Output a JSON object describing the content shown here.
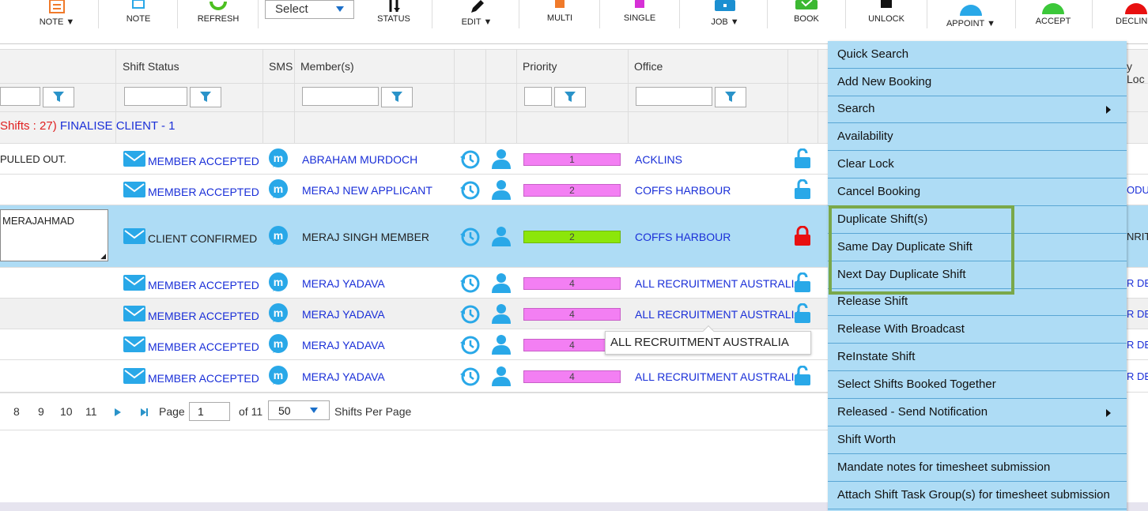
{
  "toolbar": {
    "note_menu": "NOTE",
    "note": "NOTE",
    "refresh": "REFRESH",
    "select_value": "Select",
    "status": "STATUS",
    "edit": "EDIT",
    "multi": "MULTI",
    "single": "SINGLE",
    "job": "JOB",
    "book": "BOOK",
    "unlock": "UNLOCK",
    "appoint": "APPOINT",
    "accept": "ACCEPT",
    "decline": "DECLIN"
  },
  "columns": {
    "shift_status": "Shift Status",
    "sms": "SMS",
    "members": "Member(s)",
    "priority": "Priority",
    "office": "Office",
    "right_partial": "y Loc"
  },
  "group": {
    "shifts_count": "Shifts : 27)",
    "label": "FINALISE CLIENT - 1"
  },
  "rows": [
    {
      "note": "PULLED OUT.",
      "status": "MEMBER ACCEPTED",
      "member": "ABRAHAM MURDOCH",
      "priority": "1",
      "office": "ACKLINS",
      "right": ""
    },
    {
      "note": "",
      "status": "MEMBER ACCEPTED",
      "member": "MERAJ NEW APPLICANT",
      "priority": "2",
      "office": "COFFS HARBOUR",
      "right": "ODU"
    },
    {
      "note": "MERAJAHMAD",
      "status": "CLIENT CONFIRMED",
      "member": "MERAJ SINGH MEMBER",
      "priority": "2",
      "office": "COFFS HARBOUR",
      "right": "NRIT"
    },
    {
      "note": "",
      "status": "MEMBER ACCEPTED",
      "member": "MERAJ YADAVA",
      "priority": "4",
      "office": "ALL RECRUITMENT AUSTRALIA",
      "right": "R DEL"
    },
    {
      "note": "",
      "status": "MEMBER ACCEPTED",
      "member": "MERAJ YADAVA",
      "priority": "4",
      "office": "ALL RECRUITMENT AUSTRALIA",
      "right": "R DEL"
    },
    {
      "note": "",
      "status": "MEMBER ACCEPTED",
      "member": "MERAJ YADAVA",
      "priority": "4",
      "office": "",
      "right": "R DEL"
    },
    {
      "note": "",
      "status": "MEMBER ACCEPTED",
      "member": "MERAJ YADAVA",
      "priority": "4",
      "office": "ALL RECRUITMENT AUSTRALIA",
      "right": "R DEL"
    }
  ],
  "tooltip": "ALL RECRUITMENT AUSTRALIA",
  "pager": {
    "pages": [
      "8",
      "9",
      "10",
      "11"
    ],
    "page_label": "Page",
    "page_value": "1",
    "of_label": "of 11",
    "per_page_value": "50",
    "per_page_label": "Shifts Per Page"
  },
  "context_menu": [
    {
      "label": "Quick Search"
    },
    {
      "label": "Add New Booking"
    },
    {
      "label": "Search",
      "submenu": true
    },
    {
      "label": "Availability"
    },
    {
      "label": "Clear Lock"
    },
    {
      "label": "Cancel Booking"
    },
    {
      "label": "Duplicate Shift(s)"
    },
    {
      "label": "Same Day Duplicate Shift"
    },
    {
      "label": "Next Day Duplicate Shift"
    },
    {
      "label": "Release Shift"
    },
    {
      "label": "Release With Broadcast"
    },
    {
      "label": "ReInstate Shift"
    },
    {
      "label": "Select Shifts Booked Together"
    },
    {
      "label": "Released - Send Notification",
      "submenu": true
    },
    {
      "label": "Shift Worth"
    },
    {
      "label": "Mandate notes for timesheet submission"
    },
    {
      "label": "Attach Shift Task Group(s) for timesheet submission"
    }
  ],
  "colors": {
    "menu_bg": "#aedcf5",
    "highlight_border": "#7aa84a",
    "priority_pink": "#f37ff3",
    "priority_green": "#8ce60a",
    "link_blue": "#1a2fd8",
    "icon_blue": "#29a8e8",
    "lock_red": "#e81010"
  }
}
